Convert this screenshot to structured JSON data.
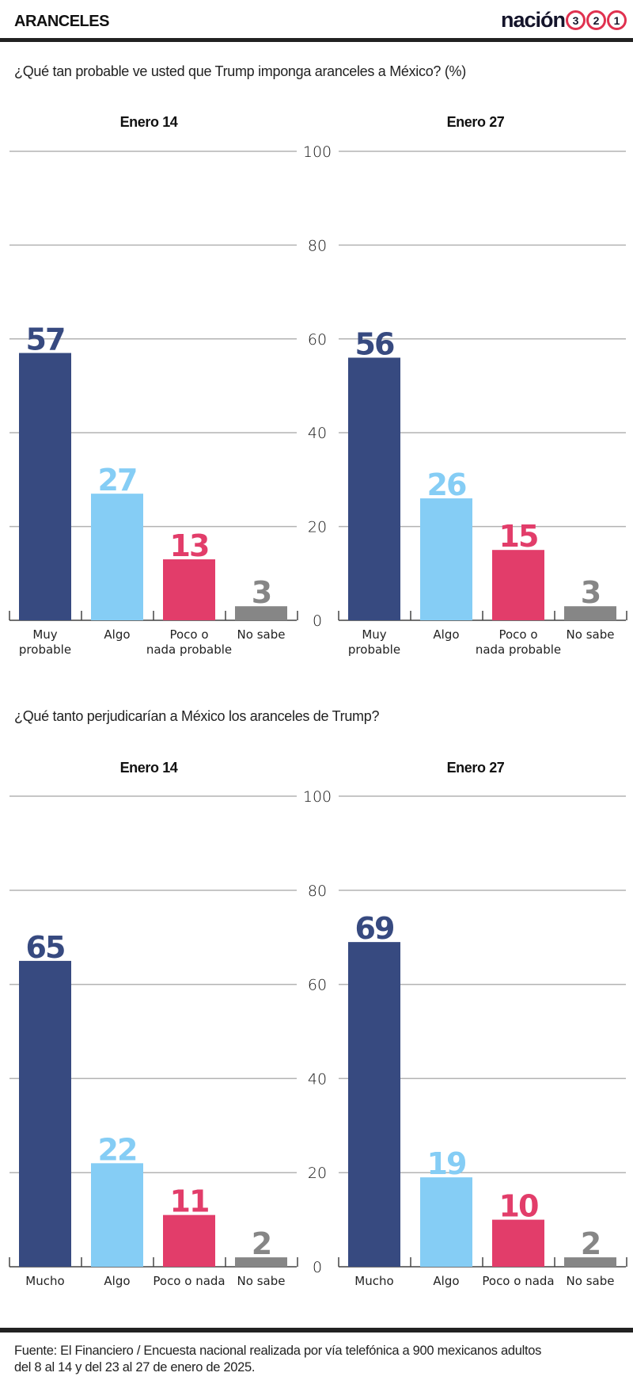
{
  "header": {
    "section_label": "ARANCELES",
    "logo_word": "nación",
    "logo_digits": [
      "3",
      "2",
      "1"
    ]
  },
  "colors": {
    "muy": "#374a80",
    "algo": "#85cdf5",
    "poco": "#e23d6a",
    "nosabe": "#868686",
    "grid": "#b3b3b3",
    "accent_logo": "#e0314f"
  },
  "footer": {
    "line1": "Fuente: El Financiero / Encuesta nacional realizada por vía telefónica a 900 mexicanos adultos",
    "line2": "del 8 al 14 y del 23 al 27 de enero de 2025."
  },
  "chart_data": [
    {
      "type": "bar",
      "title": "¿Qué tan probable ve usted que Trump imponga aranceles a México? (%)",
      "ylim": [
        0,
        100
      ],
      "yticks": [
        0,
        20,
        40,
        60,
        80,
        100
      ],
      "grid": true,
      "panels": [
        {
          "title": "Enero 14",
          "categories": [
            [
              "Muy",
              "probable"
            ],
            [
              "Algo"
            ],
            [
              "Poco o",
              "nada probable"
            ],
            [
              "No sabe"
            ]
          ],
          "values": [
            57,
            27,
            13,
            3
          ]
        },
        {
          "title": "Enero 27",
          "categories": [
            [
              "Muy",
              "probable"
            ],
            [
              "Algo"
            ],
            [
              "Poco o",
              "nada probable"
            ],
            [
              "No sabe"
            ]
          ],
          "values": [
            56,
            26,
            15,
            3
          ]
        }
      ]
    },
    {
      "type": "bar",
      "title": "¿Qué tanto perjudicarían a México los aranceles de Trump?",
      "ylim": [
        0,
        100
      ],
      "yticks": [
        0,
        20,
        40,
        60,
        80,
        100
      ],
      "grid": true,
      "panels": [
        {
          "title": "Enero 14",
          "categories": [
            [
              "Mucho"
            ],
            [
              "Algo"
            ],
            [
              "Poco o nada"
            ],
            [
              "No sabe"
            ]
          ],
          "values": [
            65,
            22,
            11,
            2
          ]
        },
        {
          "title": "Enero 27",
          "categories": [
            [
              "Mucho"
            ],
            [
              "Algo"
            ],
            [
              "Poco o nada"
            ],
            [
              "No sabe"
            ]
          ],
          "values": [
            69,
            19,
            10,
            2
          ]
        }
      ]
    }
  ]
}
